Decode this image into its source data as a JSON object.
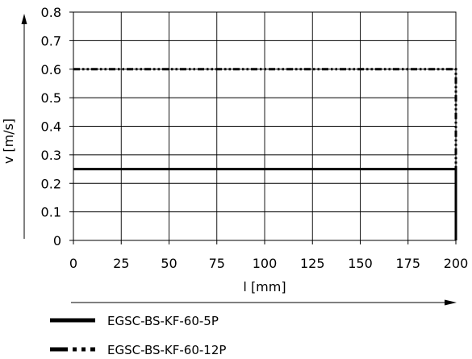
{
  "chart_data": {
    "type": "line",
    "xlabel": "l [mm]",
    "ylabel": "v [m/s]",
    "xlim": [
      0,
      200
    ],
    "ylim": [
      0,
      0.8
    ],
    "x_ticks": [
      "0",
      "25",
      "50",
      "75",
      "100",
      "125",
      "150",
      "175",
      "200"
    ],
    "y_ticks": [
      "0",
      "0.1",
      "0.2",
      "0.3",
      "0.4",
      "0.5",
      "0.6",
      "0.7",
      "0.8"
    ],
    "grid": true,
    "legend_position": "bottom-left",
    "series": [
      {
        "name": "EGSC-BS-KF-60-5P",
        "style": "solid",
        "x": [
          0,
          200,
          200
        ],
        "y": [
          0.25,
          0.25,
          0
        ]
      },
      {
        "name": "EGSC-BS-KF-60-12P",
        "style": "dash-dot-dot",
        "x": [
          0,
          200,
          200
        ],
        "y": [
          0.6,
          0.6,
          0
        ]
      }
    ]
  }
}
